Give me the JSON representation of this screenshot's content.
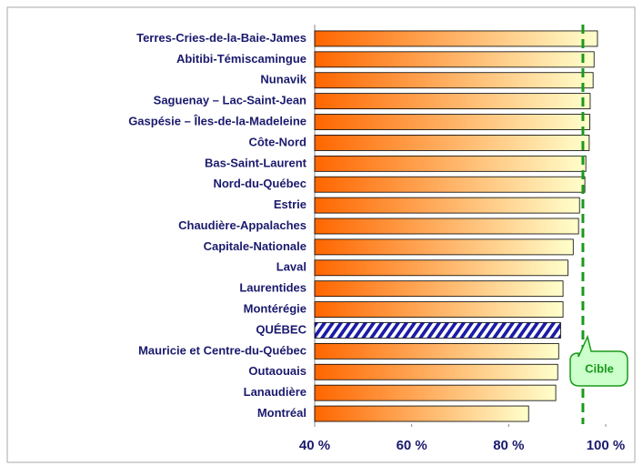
{
  "chart_data": {
    "type": "bar",
    "orientation": "horizontal",
    "categories": [
      "Terres-Cries-de-la-Baie-James",
      "Abitibi-Témiscamingue",
      "Nunavik",
      "Saguenay – Lac-Saint-Jean",
      "Gaspésie – Îles-de-la-Madeleine",
      "Côte-Nord",
      "Bas-Saint-Laurent",
      "Nord-du-Québec",
      "Estrie",
      "Chaudière-Appalaches",
      "Capitale-Nationale",
      "Laval",
      "Laurentides",
      "Montérégie",
      "QUÉBEC",
      "Mauricie et Centre-du-Québec",
      "Outaouais",
      "Lanaudière",
      "Montréal"
    ],
    "values": [
      98.3,
      97.6,
      97.4,
      96.8,
      96.7,
      96.6,
      95.9,
      95.7,
      94.6,
      94.4,
      93.3,
      92.2,
      91.2,
      91.2,
      90.7,
      90.3,
      90.1,
      89.7,
      84.1
    ],
    "colors": [
      "#ff6600",
      "#ffffcc"
    ],
    "highlight": 14,
    "highlight_color": "#1c1ca8",
    "xlim": [
      40,
      100
    ],
    "xticks": [
      {
        "value": 40,
        "label": "40 %"
      },
      {
        "value": 60,
        "label": "60 %"
      },
      {
        "value": 80,
        "label": "80 %"
      },
      {
        "value": 100,
        "label": "100 %"
      }
    ],
    "target": {
      "value": 95.3,
      "label": "Cible",
      "color": "#1a9a1a"
    }
  }
}
